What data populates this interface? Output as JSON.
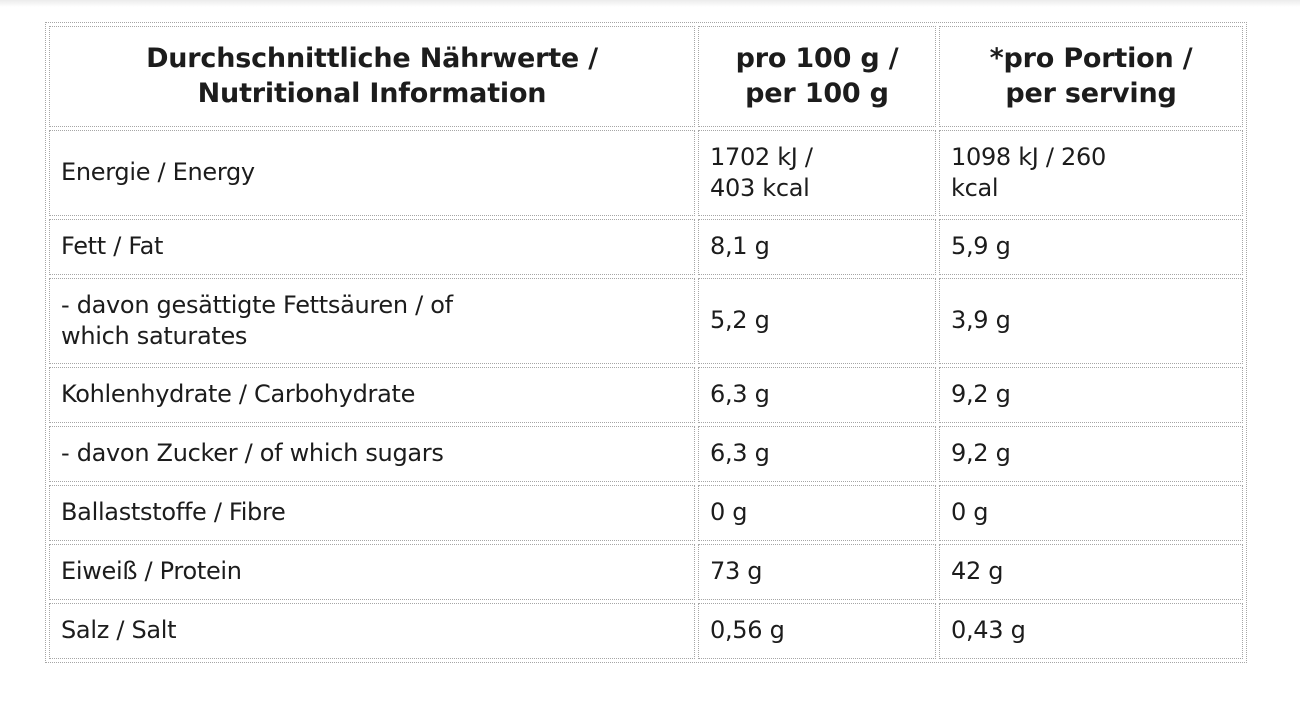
{
  "page": {
    "background_color": "#ffffff",
    "text_color": "#1c1c1c",
    "border_color": "#a6a6a6"
  },
  "nutrition_table": {
    "columns": {
      "nutrient": "Durchschnittliche Nährwerte /\nNutritional Information",
      "per_100g": "pro 100 g /\nper 100 g",
      "per_serving": "*pro Portion /\nper serving"
    },
    "rows": [
      {
        "nutrient": "Energie / Energy",
        "per_100g": "1702 kJ /\n403 kcal",
        "per_serving": "1098 kJ / 260\nkcal"
      },
      {
        "nutrient": "Fett / Fat",
        "per_100g": "8,1 g",
        "per_serving": "5,9 g"
      },
      {
        "nutrient": "- davon gesättigte Fettsäuren / of\nwhich saturates",
        "per_100g": "5,2 g",
        "per_serving": "3,9 g"
      },
      {
        "nutrient": "Kohlenhydrate / Carbohydrate",
        "per_100g": "6,3 g",
        "per_serving": "9,2 g"
      },
      {
        "nutrient": "- davon Zucker / of which sugars",
        "per_100g": "6,3 g",
        "per_serving": "9,2 g"
      },
      {
        "nutrient": "Ballaststoffe / Fibre",
        "per_100g": "0 g",
        "per_serving": "0 g"
      },
      {
        "nutrient": "Eiweiß / Protein",
        "per_100g": "73 g",
        "per_serving": "42 g"
      },
      {
        "nutrient": "Salz / Salt",
        "per_100g": "0,56 g",
        "per_serving": "0,43 g"
      }
    ]
  }
}
